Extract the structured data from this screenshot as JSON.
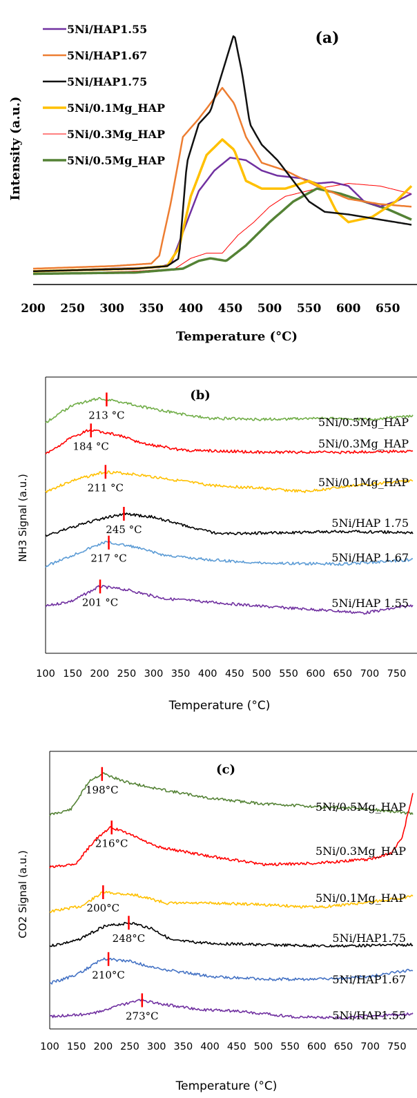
{
  "chart_data": [
    {
      "type": "line",
      "panel_label": "(a)",
      "xlabel": "Temperature (°C)",
      "ylabel": "Intensity (a.u.)",
      "xlim": [
        200,
        680
      ],
      "ylim": [
        0,
        100
      ],
      "xticks": [
        "200",
        "250",
        "300",
        "350",
        "400",
        "450",
        "500",
        "550",
        "600",
        "650"
      ],
      "legend_position": "top-left",
      "series": [
        {
          "name": "5Ni/HAP1.55",
          "color": "#7030a0",
          "width": 2.5,
          "points": [
            [
              200,
              3
            ],
            [
              300,
              4
            ],
            [
              360,
              4.5
            ],
            [
              375,
              6
            ],
            [
              390,
              18
            ],
            [
              410,
              34
            ],
            [
              430,
              42
            ],
            [
              450,
              47
            ],
            [
              470,
              46
            ],
            [
              490,
              42
            ],
            [
              510,
              40
            ],
            [
              540,
              39
            ],
            [
              560,
              37
            ],
            [
              580,
              37.5
            ],
            [
              600,
              36
            ],
            [
              620,
              30
            ],
            [
              640,
              28
            ],
            [
              660,
              30
            ],
            [
              680,
              33
            ]
          ]
        },
        {
          "name": "5Ni/HAP1.67",
          "color": "#ed7d31",
          "width": 2.5,
          "points": [
            [
              200,
              4
            ],
            [
              300,
              5
            ],
            [
              350,
              6
            ],
            [
              360,
              9
            ],
            [
              375,
              30
            ],
            [
              390,
              55
            ],
            [
              410,
              62
            ],
            [
              430,
              70
            ],
            [
              440,
              74
            ],
            [
              455,
              68
            ],
            [
              470,
              55
            ],
            [
              490,
              45
            ],
            [
              520,
              42
            ],
            [
              560,
              36
            ],
            [
              600,
              31
            ],
            [
              640,
              29
            ],
            [
              680,
              28
            ]
          ]
        },
        {
          "name": "5Ni/HAP1.75",
          "color": "#111111",
          "width": 2.5,
          "points": [
            [
              200,
              3
            ],
            [
              330,
              4
            ],
            [
              370,
              5
            ],
            [
              385,
              8
            ],
            [
              395,
              45
            ],
            [
              410,
              60
            ],
            [
              425,
              65
            ],
            [
              440,
              80
            ],
            [
              455,
              95
            ],
            [
              465,
              80
            ],
            [
              475,
              60
            ],
            [
              490,
              52
            ],
            [
              510,
              46
            ],
            [
              530,
              38
            ],
            [
              550,
              30
            ],
            [
              570,
              26
            ],
            [
              600,
              25
            ],
            [
              640,
              23
            ],
            [
              680,
              21
            ]
          ]
        },
        {
          "name": "5Ni/0.1Mg_HAP",
          "color": "#ffc000",
          "width": 3.5,
          "points": [
            [
              200,
              3
            ],
            [
              330,
              4
            ],
            [
              370,
              5
            ],
            [
              385,
              12
            ],
            [
              400,
              32
            ],
            [
              420,
              48
            ],
            [
              440,
              54
            ],
            [
              455,
              50
            ],
            [
              470,
              38
            ],
            [
              490,
              35
            ],
            [
              520,
              35
            ],
            [
              550,
              38
            ],
            [
              570,
              35
            ],
            [
              585,
              26
            ],
            [
              600,
              22
            ],
            [
              630,
              24
            ],
            [
              660,
              30
            ],
            [
              680,
              36
            ]
          ]
        },
        {
          "name": "5Ni/0.3Mg_HAP",
          "color": "#ff0000",
          "width": 1,
          "points": [
            [
              200,
              2
            ],
            [
              330,
              3
            ],
            [
              380,
              4
            ],
            [
              400,
              8
            ],
            [
              420,
              10
            ],
            [
              440,
              10
            ],
            [
              460,
              17
            ],
            [
              480,
              22
            ],
            [
              500,
              28
            ],
            [
              520,
              32
            ],
            [
              560,
              35
            ],
            [
              600,
              37
            ],
            [
              640,
              36
            ],
            [
              680,
              33
            ]
          ]
        },
        {
          "name": "5Ni/0.5Mg_HAP",
          "color": "#548235",
          "width": 3.5,
          "points": [
            [
              200,
              2
            ],
            [
              330,
              2.5
            ],
            [
              390,
              4
            ],
            [
              410,
              7
            ],
            [
              425,
              8
            ],
            [
              445,
              7
            ],
            [
              470,
              13
            ],
            [
              500,
              22
            ],
            [
              530,
              30
            ],
            [
              560,
              35
            ],
            [
              590,
              33
            ],
            [
              620,
              30
            ],
            [
              650,
              27
            ],
            [
              680,
              23
            ]
          ]
        }
      ]
    },
    {
      "type": "line",
      "panel_label": "(b)",
      "xlabel": "Temperature (°C)",
      "ylabel": "NH3 Signal (a.u.)",
      "xlim": [
        100,
        780
      ],
      "xticks": [
        "100",
        "150",
        "200",
        "250",
        "300",
        "350",
        "400",
        "450",
        "500",
        "550",
        "600",
        "650",
        "700",
        "750"
      ],
      "series": [
        {
          "name": "5Ni/0.5Mg_HAP",
          "color": "#70ad47",
          "offset": 5,
          "scale": 1.0,
          "noise": 1,
          "peak_label": "213 °C",
          "shape": [
            [
              100,
              0
            ],
            [
              150,
              1.6
            ],
            [
              200,
              2.2
            ],
            [
              250,
              1.8
            ],
            [
              300,
              1.2
            ],
            [
              400,
              0.4
            ],
            [
              500,
              0.3
            ],
            [
              600,
              0.4
            ],
            [
              700,
              0.3
            ],
            [
              780,
              0.6
            ]
          ]
        },
        {
          "name": "5Ni/0.3Mg_HAP",
          "color": "#ff0000",
          "offset": 4,
          "scale": 1.0,
          "noise": 2,
          "peak_label": "184 °C",
          "shape": [
            [
              100,
              0
            ],
            [
              140,
              1.3
            ],
            [
              180,
              2.2
            ],
            [
              230,
              1.8
            ],
            [
              280,
              1.0
            ],
            [
              350,
              0.4
            ],
            [
              500,
              0.2
            ],
            [
              650,
              0.2
            ],
            [
              780,
              0.3
            ]
          ]
        },
        {
          "name": "5Ni/0.1Mg_HAP",
          "color": "#ffc000",
          "offset": 3,
          "scale": 1.0,
          "noise": 3,
          "peak_label": "211 °C",
          "shape": [
            [
              100,
              0
            ],
            [
              150,
              1.0
            ],
            [
              210,
              1.8
            ],
            [
              260,
              1.6
            ],
            [
              320,
              1.2
            ],
            [
              400,
              0.6
            ],
            [
              500,
              0.3
            ],
            [
              580,
              0.0
            ],
            [
              680,
              0.6
            ],
            [
              780,
              1.0
            ]
          ]
        },
        {
          "name": "5Ni/HAP 1.75",
          "color": "#000000",
          "offset": 2,
          "scale": 1.0,
          "noise": 4,
          "peak_label": "245 °C",
          "shape": [
            [
              100,
              0
            ],
            [
              150,
              0.8
            ],
            [
              200,
              1.5
            ],
            [
              245,
              2.0
            ],
            [
              300,
              1.7
            ],
            [
              360,
              0.9
            ],
            [
              420,
              0.2
            ],
            [
              550,
              0.3
            ],
            [
              650,
              0.4
            ],
            [
              780,
              0.3
            ]
          ]
        },
        {
          "name": "5Ni/HAP 1.67",
          "color": "#5b9bd5",
          "offset": 1,
          "scale": 1.0,
          "noise": 5,
          "peak_label": "217 °C",
          "shape": [
            [
              100,
              0
            ],
            [
              150,
              1.0
            ],
            [
              210,
              2.2
            ],
            [
              260,
              1.8
            ],
            [
              320,
              1.0
            ],
            [
              400,
              0.6
            ],
            [
              500,
              0.3
            ],
            [
              650,
              0.2
            ],
            [
              780,
              0.6
            ]
          ]
        },
        {
          "name": "5Ni/HAP 1.55",
          "color": "#7030a0",
          "offset": 0,
          "scale": 1.0,
          "noise": 6,
          "peak_label": "201 °C",
          "shape": [
            [
              100,
              0
            ],
            [
              150,
              0.5
            ],
            [
              200,
              1.8
            ],
            [
              250,
              1.5
            ],
            [
              320,
              0.7
            ],
            [
              400,
              0.4
            ],
            [
              500,
              0.0
            ],
            [
              600,
              -0.3
            ],
            [
              690,
              -0.6
            ],
            [
              780,
              0.1
            ]
          ]
        }
      ]
    },
    {
      "type": "line",
      "panel_label": "(c)",
      "xlabel": "Temperature (°C)",
      "ylabel": "CO2 Signal (a.u.)",
      "xlim": [
        100,
        780
      ],
      "xticks": [
        "100",
        "150",
        "200",
        "250",
        "300",
        "350",
        "400",
        "450",
        "500",
        "550",
        "600",
        "650",
        "700",
        "750"
      ],
      "series": [
        {
          "name": "5Ni/0.5Mg_HAP",
          "color": "#548235",
          "offset": 5,
          "scale": 1.0,
          "noise": 11,
          "peak_label": "198°C",
          "shape": [
            [
              100,
              0
            ],
            [
              140,
              0.4
            ],
            [
              175,
              2.5
            ],
            [
              200,
              3.0
            ],
            [
              240,
              2.4
            ],
            [
              300,
              1.9
            ],
            [
              400,
              1.2
            ],
            [
              500,
              0.8
            ],
            [
              600,
              0.6
            ],
            [
              700,
              0.4
            ],
            [
              780,
              0.1
            ]
          ]
        },
        {
          "name": "5Ni/0.3Mg_HAP",
          "color": "#ff0000",
          "offset": 4,
          "scale": 1.0,
          "noise": 12,
          "peak_label": "216°C",
          "shape": [
            [
              100,
              0
            ],
            [
              150,
              0.3
            ],
            [
              185,
              2.0
            ],
            [
              215,
              2.9
            ],
            [
              250,
              2.4
            ],
            [
              300,
              1.5
            ],
            [
              400,
              0.8
            ],
            [
              500,
              0.2
            ],
            [
              600,
              0.3
            ],
            [
              700,
              0.6
            ],
            [
              740,
              1.0
            ],
            [
              760,
              2.2
            ],
            [
              780,
              5.3
            ]
          ]
        },
        {
          "name": "5Ni/0.1Mg_HAP",
          "color": "#ffc000",
          "offset": 3,
          "scale": 1.0,
          "noise": 13,
          "peak_label": "200°C",
          "shape": [
            [
              100,
              0
            ],
            [
              160,
              0.4
            ],
            [
              200,
              1.4
            ],
            [
              260,
              1.2
            ],
            [
              320,
              0.6
            ],
            [
              420,
              0.6
            ],
            [
              500,
              0.5
            ],
            [
              600,
              0.3
            ],
            [
              680,
              0.6
            ],
            [
              780,
              1.1
            ]
          ]
        },
        {
          "name": "5Ni/HAP1.75",
          "color": "#000000",
          "offset": 2,
          "scale": 1.0,
          "noise": 14,
          "peak_label": "248°C",
          "shape": [
            [
              100,
              0
            ],
            [
              150,
              0.4
            ],
            [
              200,
              1.4
            ],
            [
              250,
              1.7
            ],
            [
              290,
              1.3
            ],
            [
              330,
              0.4
            ],
            [
              400,
              0.2
            ],
            [
              500,
              0.1
            ],
            [
              620,
              0.0
            ],
            [
              780,
              0.1
            ]
          ]
        },
        {
          "name": "5Ni/HAP1.67",
          "color": "#4472c4",
          "offset": 1,
          "scale": 1.0,
          "noise": 15,
          "peak_label": "210°C",
          "shape": [
            [
              100,
              0
            ],
            [
              150,
              0.6
            ],
            [
              200,
              1.8
            ],
            [
              250,
              1.6
            ],
            [
              300,
              1.1
            ],
            [
              400,
              0.5
            ],
            [
              500,
              0.3
            ],
            [
              620,
              0.3
            ],
            [
              700,
              0.5
            ],
            [
              780,
              1.0
            ]
          ]
        },
        {
          "name": "5Ni/HAP1.55",
          "color": "#7030a0",
          "offset": 0,
          "scale": 1.0,
          "noise": 16,
          "peak_label": "273°C",
          "shape": [
            [
              100,
              0
            ],
            [
              180,
              0.2
            ],
            [
              230,
              0.8
            ],
            [
              270,
              1.2
            ],
            [
              310,
              0.9
            ],
            [
              380,
              0.5
            ],
            [
              450,
              0.4
            ],
            [
              550,
              0.0
            ],
            [
              650,
              -0.1
            ],
            [
              780,
              0.2
            ]
          ]
        }
      ]
    }
  ]
}
